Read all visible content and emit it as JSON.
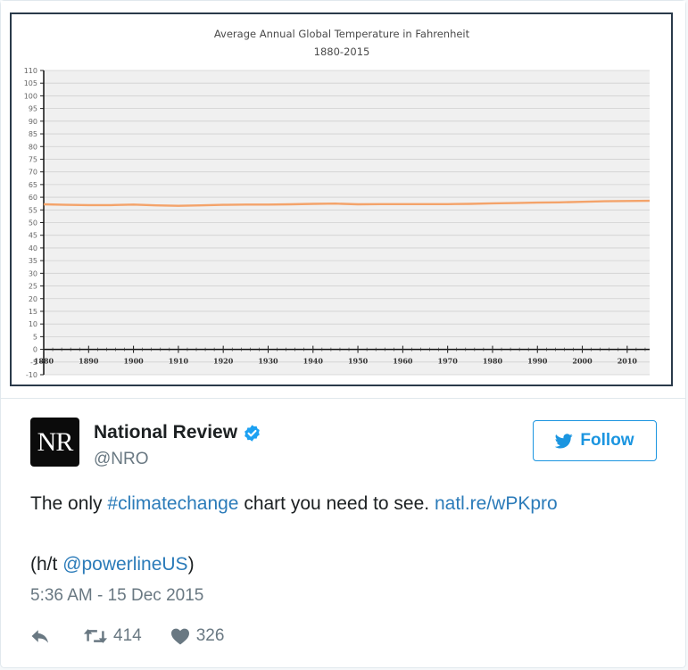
{
  "tweet": {
    "author_name": "National Review",
    "author_handle": "@NRO",
    "avatar_text": "NR",
    "follow_label": "Follow",
    "text_before": "The only ",
    "hashtag": "#climatechange",
    "text_middle": " chart you need to see. ",
    "link": "natl.re/wPKpro",
    "ht_prefix": "(h/t ",
    "ht_mention": "@powerlineUS",
    "ht_suffix": ")",
    "timestamp": "5:36 AM - 15 Dec 2015",
    "retweets": "414",
    "likes": "326",
    "icons": [
      "verified-badge-icon",
      "twitter-bird-icon",
      "reply-icon",
      "retweet-icon",
      "heart-icon"
    ],
    "colors": {
      "link": "#2b7bb9",
      "follow": "#1b95e0",
      "line": "#f4a36a"
    }
  },
  "chart_data": {
    "type": "line",
    "title": "Average Annual Global Temperature in Fahrenheit",
    "subtitle": "1880-2015",
    "xlabel": "",
    "ylabel": "",
    "xlim": [
      1880,
      2015
    ],
    "ylim": [
      -10,
      110
    ],
    "yticks": [
      "110",
      "105",
      "100",
      "95",
      "90",
      "85",
      "80",
      "75",
      "70",
      "65",
      "60",
      "55",
      "50",
      "45",
      "40",
      "35",
      "30",
      "25",
      "20",
      "15",
      "10",
      "5",
      "0",
      "-5",
      "-10"
    ],
    "xticks": [
      "1880",
      "1890",
      "1900",
      "1910",
      "1920",
      "1930",
      "1940",
      "1950",
      "1960",
      "1970",
      "1980",
      "1990",
      "2000",
      "2010"
    ],
    "grid": true,
    "series": [
      {
        "name": "",
        "x": [
          1880,
          1885,
          1890,
          1895,
          1900,
          1905,
          1910,
          1915,
          1920,
          1925,
          1930,
          1935,
          1940,
          1945,
          1950,
          1955,
          1960,
          1965,
          1970,
          1975,
          1980,
          1985,
          1990,
          1995,
          2000,
          2005,
          2010,
          2015
        ],
        "values": [
          57.2,
          57.0,
          56.9,
          56.9,
          57.1,
          56.8,
          56.6,
          56.8,
          57.0,
          57.1,
          57.1,
          57.2,
          57.4,
          57.5,
          57.2,
          57.3,
          57.3,
          57.3,
          57.3,
          57.4,
          57.6,
          57.7,
          57.9,
          58.0,
          58.2,
          58.4,
          58.5,
          58.6
        ]
      }
    ]
  }
}
